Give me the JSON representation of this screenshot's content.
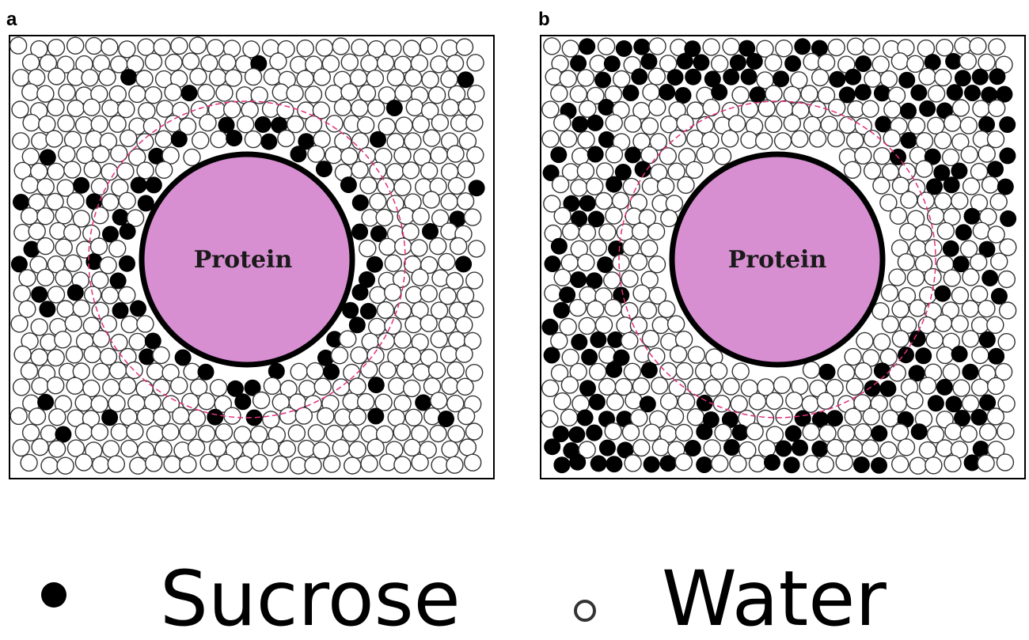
{
  "colors": {
    "protein_fill": "#d88fd2",
    "protein_stroke": "#000000",
    "shell_dash": "#e0307a",
    "sucrose": "#000000",
    "water_stroke": "#333333",
    "water_fill": "#ffffff"
  },
  "panels": [
    {
      "label": "a",
      "protein_label": "Protein",
      "arrangement": "sucrose-enriched-hydration-shell"
    },
    {
      "label": "b",
      "protein_label": "Protein",
      "arrangement": "water-enriched-hydration-shell"
    }
  ],
  "legend": {
    "items": [
      {
        "symbol": "filled-circle",
        "label": "Sucrose"
      },
      {
        "symbol": "open-circle",
        "label": "Water"
      }
    ]
  }
}
